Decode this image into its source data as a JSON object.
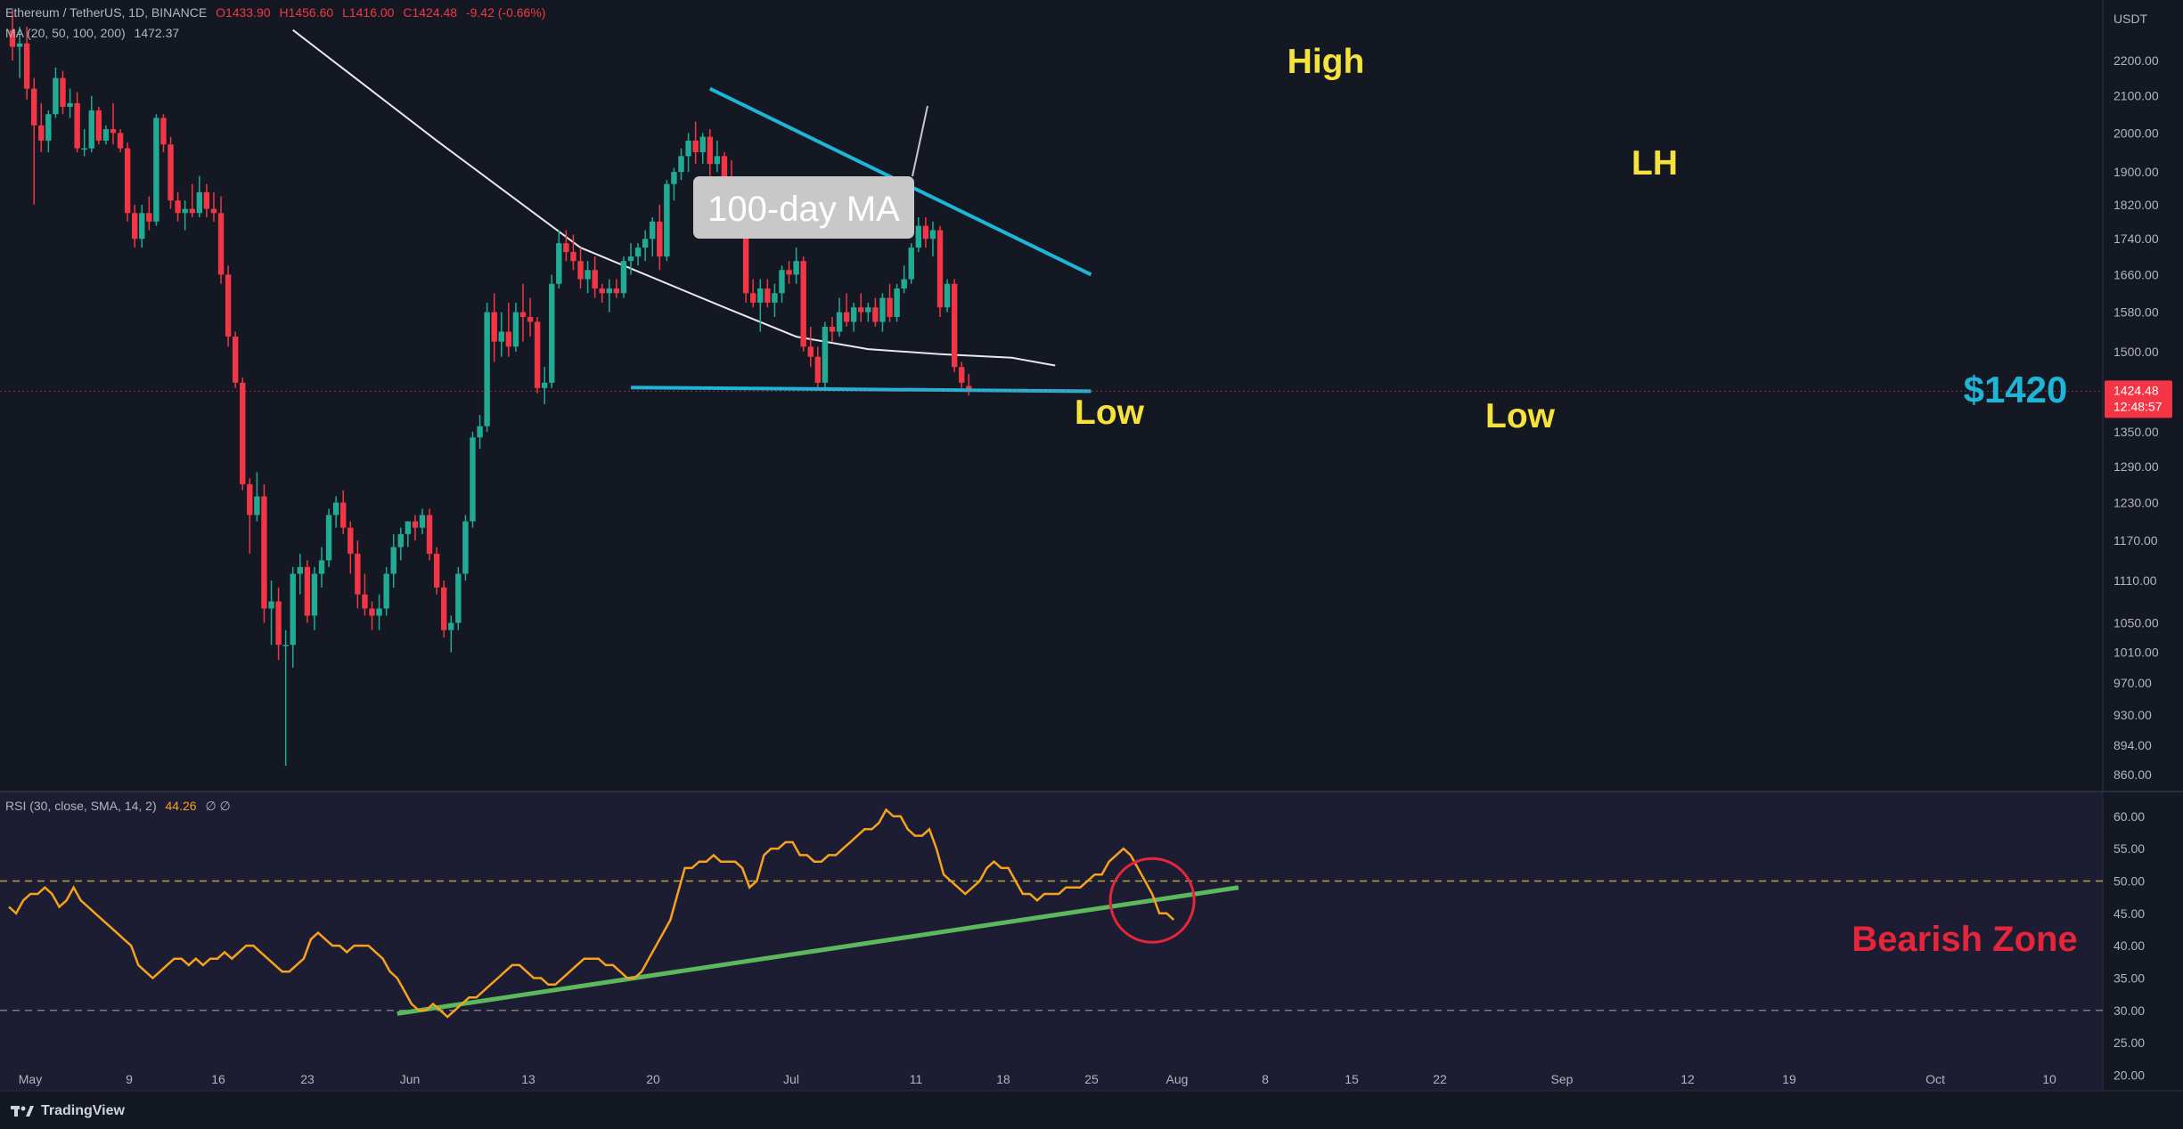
{
  "header": {
    "symbol": "Ethereum / TetherUS, 1D, BINANCE",
    "open": "O1433.90",
    "high": "H1456.60",
    "low": "L1416.00",
    "close": "C1424.48",
    "change": "-9.42 (-0.66%)",
    "ma_legend": "MA (20, 50, 100, 200)",
    "ma_value": "1472.37",
    "rsi_legend": "RSI (30, close, SMA, 14, 2)",
    "rsi_value": "44.26",
    "rsi_extra": "∅ ∅"
  },
  "currency": "USDT",
  "last_price": {
    "label": "1424.48",
    "countdown": "12:48:57"
  },
  "footer": {
    "brand": "TradingView"
  },
  "colors": {
    "background": "#141823",
    "rsi_panel": "#1c1c33",
    "bull": "#22ab94",
    "bear": "#f23645",
    "trendline": "#1fb5d6",
    "annotation": "#f5e23c",
    "ma": "#e8e8e8",
    "rsi": "#f7a21b",
    "rsi_trend": "#5cb85c",
    "bearish": "#e5253a"
  },
  "chart_data": [
    {
      "type": "candlestick",
      "x_axis_labels": [
        "May",
        "9",
        "16",
        "23",
        "Jun",
        "13",
        "20",
        "Jul",
        "11",
        "18",
        "25",
        "Aug",
        "8",
        "15",
        "22",
        "Sep",
        "12",
        "19",
        "Oct",
        "10"
      ],
      "y_axis_ticks": [
        "2200.00",
        "2100.00",
        "2000.00",
        "1900.00",
        "1820.00",
        "1740.00",
        "1660.00",
        "1580.00",
        "1500.00",
        "1420.00",
        "1350.00",
        "1290.00",
        "1230.00",
        "1170.00",
        "1110.00",
        "1050.00",
        "1010.00",
        "970.00",
        "930.00",
        "894.00",
        "860.00"
      ],
      "y_scale": "log",
      "ylim": [
        845,
        2300
      ],
      "candles": [
        {
          "o": 2290,
          "h": 2350,
          "l": 2200,
          "c": 2240
        },
        {
          "o": 2240,
          "h": 2300,
          "l": 2150,
          "c": 2250
        },
        {
          "o": 2250,
          "h": 2300,
          "l": 2090,
          "c": 2120
        },
        {
          "o": 2120,
          "h": 2150,
          "l": 1820,
          "c": 2020
        },
        {
          "o": 2020,
          "h": 2080,
          "l": 1950,
          "c": 1980
        },
        {
          "o": 1980,
          "h": 2060,
          "l": 1950,
          "c": 2050
        },
        {
          "o": 2050,
          "h": 2180,
          "l": 2040,
          "c": 2150
        },
        {
          "o": 2150,
          "h": 2170,
          "l": 2050,
          "c": 2070
        },
        {
          "o": 2070,
          "h": 2120,
          "l": 2040,
          "c": 2080
        },
        {
          "o": 2080,
          "h": 2110,
          "l": 1950,
          "c": 1960
        },
        {
          "o": 1960,
          "h": 2010,
          "l": 1940,
          "c": 1960
        },
        {
          "o": 1960,
          "h": 2100,
          "l": 1950,
          "c": 2060
        },
        {
          "o": 2060,
          "h": 2070,
          "l": 1970,
          "c": 1980
        },
        {
          "o": 1980,
          "h": 2020,
          "l": 1970,
          "c": 2010
        },
        {
          "o": 2010,
          "h": 2080,
          "l": 1970,
          "c": 2000
        },
        {
          "o": 2000,
          "h": 2010,
          "l": 1950,
          "c": 1960
        },
        {
          "o": 1960,
          "h": 1975,
          "l": 1780,
          "c": 1800
        },
        {
          "o": 1800,
          "h": 1820,
          "l": 1720,
          "c": 1740
        },
        {
          "o": 1740,
          "h": 1820,
          "l": 1720,
          "c": 1800
        },
        {
          "o": 1800,
          "h": 1840,
          "l": 1760,
          "c": 1780
        },
        {
          "o": 1780,
          "h": 2050,
          "l": 1770,
          "c": 2040
        },
        {
          "o": 2040,
          "h": 2050,
          "l": 1950,
          "c": 1970
        },
        {
          "o": 1970,
          "h": 1990,
          "l": 1810,
          "c": 1830
        },
        {
          "o": 1830,
          "h": 1850,
          "l": 1780,
          "c": 1800
        },
        {
          "o": 1800,
          "h": 1830,
          "l": 1760,
          "c": 1810
        },
        {
          "o": 1810,
          "h": 1870,
          "l": 1790,
          "c": 1800
        },
        {
          "o": 1800,
          "h": 1890,
          "l": 1790,
          "c": 1850
        },
        {
          "o": 1850,
          "h": 1870,
          "l": 1790,
          "c": 1810
        },
        {
          "o": 1810,
          "h": 1850,
          "l": 1780,
          "c": 1800
        },
        {
          "o": 1800,
          "h": 1840,
          "l": 1640,
          "c": 1660
        },
        {
          "o": 1660,
          "h": 1680,
          "l": 1510,
          "c": 1530
        },
        {
          "o": 1530,
          "h": 1540,
          "l": 1430,
          "c": 1440
        },
        {
          "o": 1440,
          "h": 1450,
          "l": 1250,
          "c": 1260
        },
        {
          "o": 1260,
          "h": 1270,
          "l": 1150,
          "c": 1210
        },
        {
          "o": 1210,
          "h": 1280,
          "l": 1200,
          "c": 1240
        },
        {
          "o": 1240,
          "h": 1260,
          "l": 1050,
          "c": 1070
        },
        {
          "o": 1070,
          "h": 1110,
          "l": 1020,
          "c": 1080
        },
        {
          "o": 1080,
          "h": 1100,
          "l": 1000,
          "c": 1020
        },
        {
          "o": 1020,
          "h": 1040,
          "l": 870,
          "c": 1020
        },
        {
          "o": 1020,
          "h": 1130,
          "l": 990,
          "c": 1120
        },
        {
          "o": 1120,
          "h": 1150,
          "l": 1090,
          "c": 1130
        },
        {
          "o": 1130,
          "h": 1140,
          "l": 1050,
          "c": 1060
        },
        {
          "o": 1060,
          "h": 1130,
          "l": 1040,
          "c": 1120
        },
        {
          "o": 1120,
          "h": 1160,
          "l": 1100,
          "c": 1140
        },
        {
          "o": 1140,
          "h": 1220,
          "l": 1130,
          "c": 1210
        },
        {
          "o": 1210,
          "h": 1240,
          "l": 1190,
          "c": 1230
        },
        {
          "o": 1230,
          "h": 1250,
          "l": 1180,
          "c": 1190
        },
        {
          "o": 1190,
          "h": 1200,
          "l": 1120,
          "c": 1150
        },
        {
          "o": 1150,
          "h": 1170,
          "l": 1070,
          "c": 1090
        },
        {
          "o": 1090,
          "h": 1120,
          "l": 1060,
          "c": 1070
        },
        {
          "o": 1070,
          "h": 1080,
          "l": 1040,
          "c": 1060
        },
        {
          "o": 1060,
          "h": 1090,
          "l": 1040,
          "c": 1070
        },
        {
          "o": 1070,
          "h": 1130,
          "l": 1060,
          "c": 1120
        },
        {
          "o": 1120,
          "h": 1180,
          "l": 1100,
          "c": 1160
        },
        {
          "o": 1160,
          "h": 1190,
          "l": 1140,
          "c": 1180
        },
        {
          "o": 1180,
          "h": 1200,
          "l": 1160,
          "c": 1200
        },
        {
          "o": 1200,
          "h": 1210,
          "l": 1170,
          "c": 1190
        },
        {
          "o": 1190,
          "h": 1220,
          "l": 1180,
          "c": 1210
        },
        {
          "o": 1210,
          "h": 1220,
          "l": 1140,
          "c": 1150
        },
        {
          "o": 1150,
          "h": 1160,
          "l": 1090,
          "c": 1100
        },
        {
          "o": 1100,
          "h": 1110,
          "l": 1030,
          "c": 1040
        },
        {
          "o": 1040,
          "h": 1060,
          "l": 1010,
          "c": 1050
        },
        {
          "o": 1050,
          "h": 1130,
          "l": 1040,
          "c": 1120
        },
        {
          "o": 1120,
          "h": 1210,
          "l": 1110,
          "c": 1200
        },
        {
          "o": 1200,
          "h": 1350,
          "l": 1190,
          "c": 1340
        },
        {
          "o": 1340,
          "h": 1380,
          "l": 1320,
          "c": 1360
        },
        {
          "o": 1360,
          "h": 1600,
          "l": 1350,
          "c": 1580
        },
        {
          "o": 1580,
          "h": 1620,
          "l": 1480,
          "c": 1520
        },
        {
          "o": 1520,
          "h": 1580,
          "l": 1490,
          "c": 1540
        },
        {
          "o": 1540,
          "h": 1600,
          "l": 1490,
          "c": 1510
        },
        {
          "o": 1510,
          "h": 1600,
          "l": 1500,
          "c": 1580
        },
        {
          "o": 1580,
          "h": 1640,
          "l": 1520,
          "c": 1570
        },
        {
          "o": 1570,
          "h": 1610,
          "l": 1530,
          "c": 1560
        },
        {
          "o": 1560,
          "h": 1570,
          "l": 1420,
          "c": 1430
        },
        {
          "o": 1430,
          "h": 1470,
          "l": 1400,
          "c": 1440
        },
        {
          "o": 1440,
          "h": 1660,
          "l": 1430,
          "c": 1640
        },
        {
          "o": 1640,
          "h": 1760,
          "l": 1630,
          "c": 1730
        },
        {
          "o": 1730,
          "h": 1760,
          "l": 1690,
          "c": 1710
        },
        {
          "o": 1710,
          "h": 1750,
          "l": 1670,
          "c": 1690
        },
        {
          "o": 1690,
          "h": 1720,
          "l": 1630,
          "c": 1650
        },
        {
          "o": 1650,
          "h": 1690,
          "l": 1620,
          "c": 1670
        },
        {
          "o": 1670,
          "h": 1700,
          "l": 1610,
          "c": 1630
        },
        {
          "o": 1630,
          "h": 1640,
          "l": 1600,
          "c": 1620
        },
        {
          "o": 1620,
          "h": 1650,
          "l": 1580,
          "c": 1630
        },
        {
          "o": 1630,
          "h": 1650,
          "l": 1610,
          "c": 1620
        },
        {
          "o": 1620,
          "h": 1700,
          "l": 1610,
          "c": 1690
        },
        {
          "o": 1690,
          "h": 1730,
          "l": 1660,
          "c": 1700
        },
        {
          "o": 1700,
          "h": 1730,
          "l": 1680,
          "c": 1720
        },
        {
          "o": 1720,
          "h": 1760,
          "l": 1690,
          "c": 1740
        },
        {
          "o": 1740,
          "h": 1790,
          "l": 1700,
          "c": 1780
        },
        {
          "o": 1780,
          "h": 1820,
          "l": 1670,
          "c": 1700
        },
        {
          "o": 1700,
          "h": 1880,
          "l": 1690,
          "c": 1870
        },
        {
          "o": 1870,
          "h": 1910,
          "l": 1830,
          "c": 1900
        },
        {
          "o": 1900,
          "h": 1960,
          "l": 1880,
          "c": 1940
        },
        {
          "o": 1940,
          "h": 2000,
          "l": 1900,
          "c": 1980
        },
        {
          "o": 1980,
          "h": 2030,
          "l": 1920,
          "c": 1950
        },
        {
          "o": 1950,
          "h": 2000,
          "l": 1920,
          "c": 1990
        },
        {
          "o": 1990,
          "h": 2010,
          "l": 1890,
          "c": 1920
        },
        {
          "o": 1920,
          "h": 1980,
          "l": 1900,
          "c": 1940
        },
        {
          "o": 1940,
          "h": 1950,
          "l": 1870,
          "c": 1880
        },
        {
          "o": 1880,
          "h": 1930,
          "l": 1850,
          "c": 1860
        },
        {
          "o": 1860,
          "h": 1880,
          "l": 1820,
          "c": 1870
        },
        {
          "o": 1870,
          "h": 1880,
          "l": 1600,
          "c": 1620
        },
        {
          "o": 1620,
          "h": 1650,
          "l": 1590,
          "c": 1600
        },
        {
          "o": 1600,
          "h": 1650,
          "l": 1540,
          "c": 1630
        },
        {
          "o": 1630,
          "h": 1650,
          "l": 1590,
          "c": 1600
        },
        {
          "o": 1600,
          "h": 1640,
          "l": 1570,
          "c": 1620
        },
        {
          "o": 1620,
          "h": 1680,
          "l": 1600,
          "c": 1670
        },
        {
          "o": 1670,
          "h": 1690,
          "l": 1640,
          "c": 1660
        },
        {
          "o": 1660,
          "h": 1720,
          "l": 1640,
          "c": 1690
        },
        {
          "o": 1690,
          "h": 1700,
          "l": 1500,
          "c": 1510
        },
        {
          "o": 1510,
          "h": 1550,
          "l": 1470,
          "c": 1490
        },
        {
          "o": 1490,
          "h": 1510,
          "l": 1430,
          "c": 1440
        },
        {
          "o": 1440,
          "h": 1560,
          "l": 1430,
          "c": 1550
        },
        {
          "o": 1550,
          "h": 1570,
          "l": 1520,
          "c": 1540
        },
        {
          "o": 1540,
          "h": 1610,
          "l": 1530,
          "c": 1580
        },
        {
          "o": 1580,
          "h": 1620,
          "l": 1550,
          "c": 1560
        },
        {
          "o": 1560,
          "h": 1600,
          "l": 1540,
          "c": 1590
        },
        {
          "o": 1590,
          "h": 1620,
          "l": 1560,
          "c": 1580
        },
        {
          "o": 1580,
          "h": 1600,
          "l": 1560,
          "c": 1590
        },
        {
          "o": 1590,
          "h": 1610,
          "l": 1550,
          "c": 1560
        },
        {
          "o": 1560,
          "h": 1620,
          "l": 1540,
          "c": 1610
        },
        {
          "o": 1610,
          "h": 1640,
          "l": 1560,
          "c": 1570
        },
        {
          "o": 1570,
          "h": 1640,
          "l": 1560,
          "c": 1630
        },
        {
          "o": 1630,
          "h": 1680,
          "l": 1620,
          "c": 1650
        },
        {
          "o": 1650,
          "h": 1730,
          "l": 1640,
          "c": 1720
        },
        {
          "o": 1720,
          "h": 1790,
          "l": 1710,
          "c": 1770
        },
        {
          "o": 1770,
          "h": 1790,
          "l": 1720,
          "c": 1740
        },
        {
          "o": 1740,
          "h": 1780,
          "l": 1700,
          "c": 1760
        },
        {
          "o": 1760,
          "h": 1770,
          "l": 1570,
          "c": 1590
        },
        {
          "o": 1590,
          "h": 1650,
          "l": 1580,
          "c": 1640
        },
        {
          "o": 1640,
          "h": 1650,
          "l": 1460,
          "c": 1470
        },
        {
          "o": 1470,
          "h": 1480,
          "l": 1430,
          "c": 1440
        },
        {
          "o": 1434,
          "h": 1457,
          "l": 1416,
          "c": 1424
        }
      ],
      "moving_average": {
        "name": "100-day MA",
        "x": [
          39,
          59,
          79,
          99,
          109,
          119,
          129,
          139,
          145
        ],
        "values": [
          2290,
          1980,
          1720,
          1590,
          1530,
          1505,
          1495,
          1488,
          1473
        ]
      },
      "trendlines": [
        {
          "name": "resistance",
          "from": [
            97,
            2120
          ],
          "to": [
            150,
            1660
          ]
        },
        {
          "name": "support",
          "from": [
            86,
            1431
          ],
          "to": [
            150,
            1424
          ]
        }
      ],
      "annotations": [
        {
          "text": "High",
          "x": 105,
          "y": 2160
        },
        {
          "text": "LH",
          "x": 131,
          "y": 1880
        },
        {
          "text": "Low",
          "x": 87,
          "y": 1370
        },
        {
          "text": "Low",
          "x": 120,
          "y": 1370
        },
        {
          "text": "100-day MA",
          "x": 63,
          "y": 1800
        }
      ],
      "price_level": {
        "label": "$1420",
        "value": 1424
      }
    },
    {
      "type": "line",
      "name": "RSI",
      "y_axis_ticks": [
        "60.00",
        "55.00",
        "50.00",
        "45.00",
        "40.00",
        "35.00",
        "30.00",
        "25.00",
        "20.00"
      ],
      "ylim": [
        18,
        63
      ],
      "levels": [
        50,
        30
      ],
      "values": [
        46,
        45,
        47,
        48,
        48,
        49,
        48,
        46,
        47,
        49,
        47,
        46,
        45,
        44,
        43,
        42,
        41,
        40,
        37,
        36,
        35,
        36,
        37,
        38,
        38,
        37,
        38,
        37,
        38,
        38,
        39,
        38,
        39,
        40,
        40,
        39,
        38,
        37,
        36,
        36,
        37,
        38,
        41,
        42,
        41,
        40,
        40,
        39,
        40,
        40,
        40,
        39,
        38,
        36,
        35,
        33,
        31,
        30,
        30,
        31,
        30,
        29,
        30,
        31,
        32,
        32,
        33,
        34,
        35,
        36,
        37,
        37,
        36,
        35,
        35,
        34,
        34,
        35,
        36,
        37,
        38,
        38,
        38,
        37,
        37,
        36,
        35,
        35,
        36,
        38,
        40,
        42,
        44,
        48,
        52,
        52,
        53,
        53,
        54,
        53,
        53,
        53,
        52,
        49,
        50,
        54,
        55,
        55,
        56,
        56,
        54,
        54,
        53,
        53,
        54,
        54,
        55,
        56,
        57,
        58,
        58,
        59,
        61,
        60,
        60,
        58,
        57,
        57,
        58,
        55,
        51,
        50,
        49,
        48,
        49,
        50,
        52,
        53,
        52,
        52,
        50,
        48,
        48,
        47,
        48,
        48,
        48,
        49,
        49,
        49,
        50,
        51,
        51,
        53,
        54,
        55,
        54,
        52,
        50,
        48,
        45,
        45,
        44
      ],
      "trendline": {
        "from": [
          54,
          29.5
        ],
        "to": [
          171,
          49
        ]
      },
      "annotation": {
        "text": "Bearish Zone",
        "x": 178,
        "y": 40
      }
    }
  ]
}
